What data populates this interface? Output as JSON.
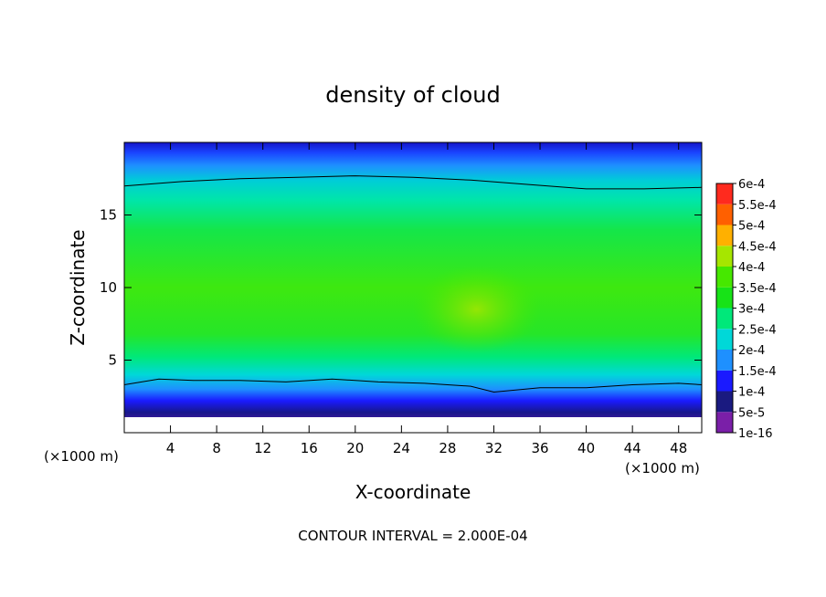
{
  "chart_data": {
    "type": "heatmap",
    "title": "density of cloud",
    "xlabel": "X-coordinate",
    "ylabel": "Z-coordinate",
    "x_unit": "(×1000 m)",
    "y_unit": "(×1000 m)",
    "footer": "CONTOUR INTERVAL = 2.000E-04",
    "xlim": [
      0,
      50
    ],
    "ylim": [
      0,
      20
    ],
    "xticks": [
      "4",
      "8",
      "12",
      "16",
      "20",
      "24",
      "28",
      "32",
      "36",
      "40",
      "44",
      "48"
    ],
    "yticks": [
      "5",
      "10",
      "15"
    ],
    "colorbar": {
      "labels": [
        "1e-16",
        "5e-5",
        "1e-4",
        "1.5e-4",
        "2e-4",
        "2.5e-4",
        "3e-4",
        "3.5e-4",
        "4e-4",
        "4.5e-4",
        "5e-4",
        "5.5e-4",
        "6e-4"
      ],
      "colors": [
        "#7a1fa8",
        "#1a1a80",
        "#1a1aff",
        "#1e90ff",
        "#00d8d8",
        "#00e87a",
        "#17e317",
        "#46e800",
        "#a6e600",
        "#ffb000",
        "#ff6000",
        "#ff2a1e",
        "#ff8a8a"
      ]
    },
    "contour_lines": [
      {
        "level": "2e-4",
        "x": [
          0,
          5,
          10,
          15,
          20,
          25,
          30,
          35,
          40,
          45,
          50
        ],
        "z": [
          17.0,
          17.3,
          17.5,
          17.6,
          17.7,
          17.6,
          17.4,
          17.1,
          16.8,
          16.8,
          16.9
        ]
      },
      {
        "level": "2e-4",
        "x": [
          0,
          3,
          6,
          10,
          14,
          18,
          22,
          26,
          30,
          32,
          36,
          40,
          44,
          48,
          50
        ],
        "z": [
          3.3,
          3.7,
          3.6,
          3.6,
          3.5,
          3.7,
          3.5,
          3.4,
          3.2,
          2.8,
          3.1,
          3.1,
          3.3,
          3.4,
          3.3
        ]
      }
    ],
    "max_region": {
      "x": 30.5,
      "z": 8.5,
      "approx_value": "3.8e-4"
    }
  }
}
